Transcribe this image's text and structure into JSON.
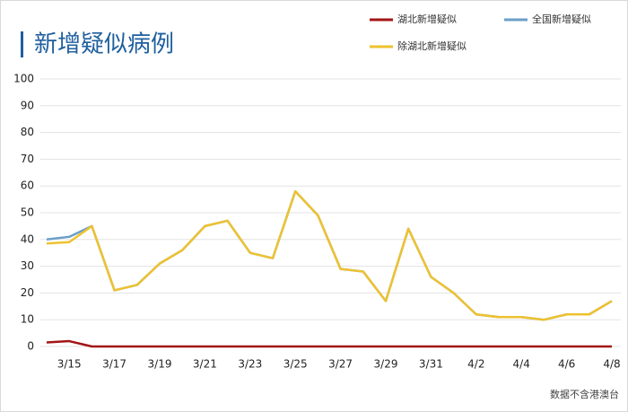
{
  "chart_data": {
    "type": "line",
    "title": "新增疑似病例",
    "footnote": "数据不含港澳台",
    "categories": [
      null,
      "3/15",
      null,
      "3/17",
      null,
      "3/19",
      null,
      "3/21",
      null,
      "3/23",
      null,
      "3/25",
      null,
      "3/27",
      null,
      "3/29",
      null,
      "3/31",
      null,
      "4/2",
      null,
      "4/4",
      null,
      "4/6",
      null,
      "4/8"
    ],
    "series": [
      {
        "name": "湖北新增疑似",
        "color": "#a31515",
        "values": [
          1.5,
          2,
          0,
          0,
          0,
          0,
          0,
          0,
          0,
          0,
          0,
          0,
          0,
          0,
          0,
          0,
          0,
          0,
          0,
          0,
          0,
          0,
          0,
          0,
          0,
          0
        ]
      },
      {
        "name": "全国新增疑似",
        "color": "#6a9fc9",
        "values": [
          40,
          41,
          45,
          21,
          23,
          31,
          36,
          45,
          47,
          35,
          33,
          58,
          49,
          29,
          28,
          17,
          44,
          26,
          20,
          12,
          11,
          11,
          10,
          12,
          12,
          17
        ]
      },
      {
        "name": "除湖北新增疑似",
        "color": "#eec22f",
        "values": [
          38.5,
          39,
          45,
          21,
          23,
          31,
          36,
          45,
          47,
          35,
          33,
          58,
          49,
          29,
          28,
          17,
          44,
          26,
          20,
          12,
          11,
          11,
          10,
          12,
          12,
          17
        ]
      }
    ],
    "ylim": [
      0,
      100
    ],
    "yticks": [
      0,
      10,
      20,
      30,
      40,
      50,
      60,
      70,
      80,
      90,
      100
    ],
    "grid": true,
    "legend": "top-right"
  }
}
